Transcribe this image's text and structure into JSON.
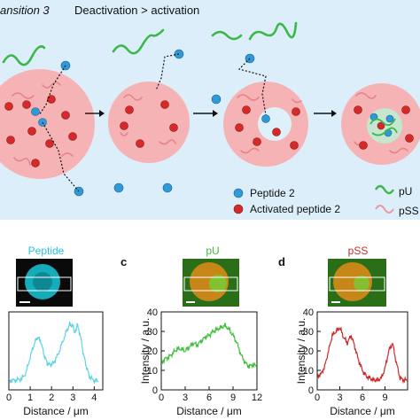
{
  "colors": {
    "top_bg": "#dbeef9",
    "droplet": "#f6b3b5",
    "lumen": "#dff1f8",
    "peptide": "#2f9ad8",
    "activated": "#d42a2a",
    "pu": "#3cb84a",
    "pss": "#e99aa0",
    "cyan_trace": "#5fd3e6",
    "green_trace": "#3fbf3a",
    "red_trace": "#cc2a2a"
  },
  "header": {
    "title_prefix": "ansition 3",
    "title_main": "Deactivation > activation"
  },
  "legend": {
    "peptide": "Peptide 2",
    "activated": "Activated peptide 2",
    "pu": "pU",
    "pss": "pSS"
  },
  "panels": {
    "peptide": {
      "title": "Peptide"
    },
    "pu": {
      "letter": "c",
      "title": "pU"
    },
    "pss": {
      "letter": "d",
      "title": "pSS"
    }
  },
  "chart_data": [
    {
      "type": "line",
      "title": "Peptide",
      "xlabel": "Distance / μm",
      "ylabel": "",
      "xlim": [
        0,
        4.4
      ],
      "ylim": [
        0,
        1
      ],
      "xticks": [
        "0",
        "1",
        "2",
        "3",
        "4"
      ],
      "series": [
        {
          "x": [
            0.0,
            0.2,
            0.4,
            0.6,
            0.8,
            1.0,
            1.2,
            1.35,
            1.5,
            1.65,
            1.8,
            1.95,
            2.1,
            2.3,
            2.5,
            2.7,
            2.85,
            3.0,
            3.1,
            3.2,
            3.35,
            3.5,
            3.65,
            3.8,
            4.0,
            4.2
          ],
          "y": [
            0.12,
            0.12,
            0.13,
            0.14,
            0.22,
            0.42,
            0.6,
            0.68,
            0.62,
            0.45,
            0.34,
            0.32,
            0.35,
            0.45,
            0.6,
            0.75,
            0.84,
            0.82,
            0.72,
            0.84,
            0.7,
            0.45,
            0.28,
            0.16,
            0.12,
            0.11
          ]
        }
      ]
    },
    {
      "type": "line",
      "title": "pU",
      "xlabel": "Distance / μm",
      "ylabel": "Intensity / a.u.",
      "xlim": [
        0,
        12
      ],
      "ylim": [
        0,
        40
      ],
      "xticks": [
        "0",
        "3",
        "6",
        "9",
        "12"
      ],
      "yticks": [
        "0",
        "10",
        "20",
        "30",
        "40"
      ],
      "series": [
        {
          "x": [
            0.0,
            0.5,
            1.0,
            1.5,
            2.0,
            2.5,
            3.0,
            3.5,
            4.0,
            4.5,
            5.0,
            5.5,
            6.0,
            6.5,
            7.0,
            7.5,
            8.0,
            8.5,
            9.0,
            9.5,
            10.0,
            10.5,
            11.0,
            11.5,
            12.0
          ],
          "y": [
            14,
            16,
            17,
            19,
            21,
            21,
            20,
            22,
            24,
            23,
            25,
            27,
            28,
            30,
            31,
            32,
            33,
            31,
            28,
            24,
            18,
            14,
            12,
            13,
            12
          ]
        }
      ]
    },
    {
      "type": "line",
      "title": "pSS",
      "xlabel": "Distance / μm",
      "ylabel": "Intensity / a.u.",
      "xlim": [
        0,
        12
      ],
      "ylim": [
        0,
        40
      ],
      "xticks": [
        "0",
        "3",
        "6",
        "9"
      ],
      "yticks": [
        "0",
        "10",
        "20",
        "30",
        "40"
      ],
      "series": [
        {
          "x": [
            0.0,
            0.5,
            1.0,
            1.5,
            2.0,
            2.5,
            3.0,
            3.5,
            4.0,
            4.5,
            5.0,
            5.5,
            6.0,
            6.5,
            7.0,
            7.5,
            8.0,
            8.5,
            9.0,
            9.5,
            10.0,
            10.5,
            11.0,
            11.5,
            12.0
          ],
          "y": [
            7,
            8,
            12,
            20,
            28,
            30,
            32,
            27,
            24,
            28,
            22,
            15,
            10,
            7,
            6,
            5,
            5,
            6,
            11,
            20,
            24,
            14,
            6,
            5,
            5
          ]
        }
      ]
    }
  ]
}
